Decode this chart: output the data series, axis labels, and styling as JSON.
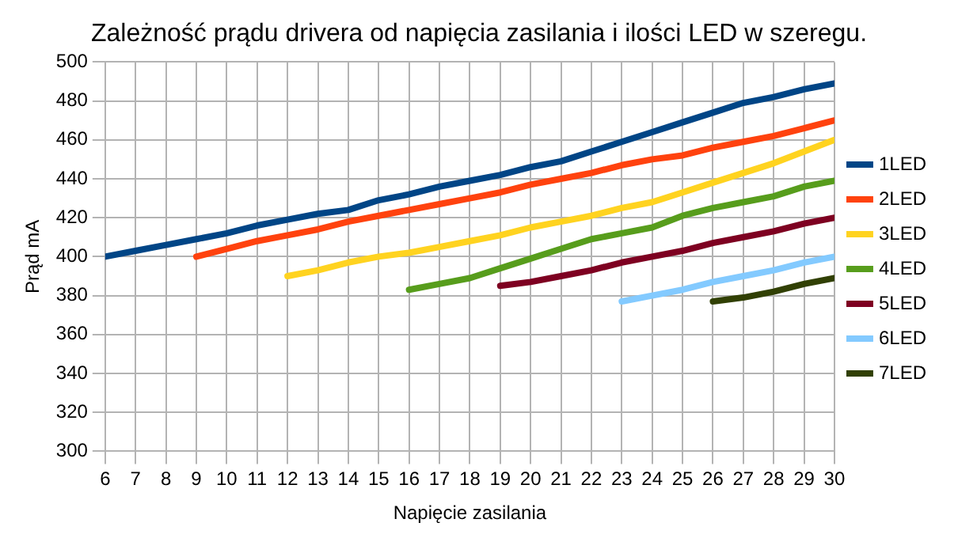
{
  "chart_data": {
    "type": "line",
    "title": "Zależność prądu drivera od napięcia zasilania i ilości LED w szeregu.",
    "xlabel": "Napięcie zasilania",
    "ylabel": "Prąd mA",
    "xlim": [
      6,
      30
    ],
    "xticks": [
      6,
      7,
      8,
      9,
      10,
      11,
      12,
      13,
      14,
      15,
      16,
      17,
      18,
      19,
      20,
      21,
      22,
      23,
      24,
      25,
      26,
      27,
      28,
      29,
      30
    ],
    "ylim": [
      300,
      500
    ],
    "yticks": [
      300,
      320,
      340,
      360,
      380,
      400,
      420,
      440,
      460,
      480,
      500
    ],
    "grid": true,
    "legend": "right",
    "marker": "none",
    "line_style": "solid",
    "series": [
      {
        "name": "1LED",
        "color": "#004586",
        "x": [
          6,
          7,
          8,
          9,
          10,
          11,
          12,
          13,
          14,
          15,
          16,
          17,
          18,
          19,
          20,
          21,
          22,
          23,
          24,
          25,
          26,
          27,
          28,
          29,
          30
        ],
        "values": [
          400,
          403,
          406,
          409,
          412,
          416,
          419,
          422,
          424,
          429,
          432,
          436,
          439,
          442,
          446,
          449,
          454,
          459,
          464,
          469,
          474,
          479,
          482,
          486,
          489
        ]
      },
      {
        "name": "2LED",
        "color": "#ff420e",
        "x": [
          9,
          10,
          11,
          12,
          13,
          14,
          15,
          16,
          17,
          18,
          19,
          20,
          21,
          22,
          23,
          24,
          25,
          26,
          27,
          28,
          29,
          30
        ],
        "values": [
          400,
          404,
          408,
          411,
          414,
          418,
          421,
          424,
          427,
          430,
          433,
          437,
          440,
          443,
          447,
          450,
          452,
          456,
          459,
          462,
          466,
          470
        ]
      },
      {
        "name": "3LED",
        "color": "#ffd320",
        "x": [
          12,
          13,
          14,
          15,
          16,
          17,
          18,
          19,
          20,
          21,
          22,
          23,
          24,
          25,
          26,
          27,
          28,
          29,
          30
        ],
        "values": [
          390,
          393,
          397,
          400,
          402,
          405,
          408,
          411,
          415,
          418,
          421,
          425,
          428,
          433,
          438,
          443,
          448,
          454,
          460
        ]
      },
      {
        "name": "4LED",
        "color": "#579d1c",
        "x": [
          16,
          17,
          18,
          19,
          20,
          21,
          22,
          23,
          24,
          25,
          26,
          27,
          28,
          29,
          30
        ],
        "values": [
          383,
          386,
          389,
          394,
          399,
          404,
          409,
          412,
          415,
          421,
          425,
          428,
          431,
          436,
          439
        ]
      },
      {
        "name": "5LED",
        "color": "#7e0021",
        "x": [
          19,
          20,
          21,
          22,
          23,
          24,
          25,
          26,
          27,
          28,
          29,
          30
        ],
        "values": [
          385,
          387,
          390,
          393,
          397,
          400,
          403,
          407,
          410,
          413,
          417,
          420
        ]
      },
      {
        "name": "6LED",
        "color": "#83caff",
        "x": [
          23,
          24,
          25,
          26,
          27,
          28,
          29,
          30
        ],
        "values": [
          377,
          380,
          383,
          387,
          390,
          393,
          397,
          400
        ]
      },
      {
        "name": "7LED",
        "color": "#314004",
        "x": [
          26,
          27,
          28,
          29,
          30
        ],
        "values": [
          377,
          379,
          382,
          386,
          389
        ]
      }
    ]
  }
}
